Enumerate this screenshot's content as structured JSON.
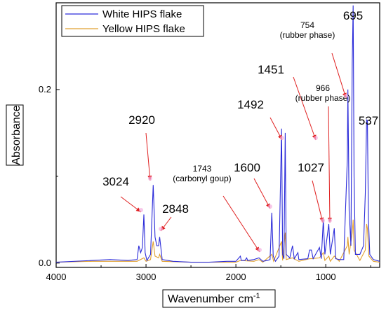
{
  "chart_data": {
    "type": "line",
    "xlabel": "Wavenumber",
    "xlabel_unit": "cm",
    "xlabel_unit_exp": "-1",
    "ylabel": "Absorbance",
    "xlim": [
      4000,
      400
    ],
    "ylim": [
      -0.005,
      0.3
    ],
    "x_ticks": [
      "4000",
      "3000",
      "2000",
      "1000"
    ],
    "x_tick_values": [
      4000,
      3000,
      2000,
      1000
    ],
    "y_ticks": [
      "0.0",
      "0.2"
    ],
    "y_tick_values": [
      0.0,
      0.2
    ],
    "grid": false,
    "legend_position": "top-left",
    "series": [
      {
        "name": "White HIPS flake",
        "color": "#2b2bd9",
        "points": [
          [
            4000,
            0.001
          ],
          [
            3600,
            0.003
          ],
          [
            3400,
            0.004
          ],
          [
            3200,
            0.003
          ],
          [
            3100,
            0.004
          ],
          [
            3080,
            0.02
          ],
          [
            3060,
            0.012
          ],
          [
            3040,
            0.018
          ],
          [
            3024,
            0.056
          ],
          [
            3010,
            0.012
          ],
          [
            2990,
            0.003
          ],
          [
            2950,
            0.01
          ],
          [
            2920,
            0.09
          ],
          [
            2900,
            0.03
          ],
          [
            2880,
            0.02
          ],
          [
            2860,
            0.02
          ],
          [
            2848,
            0.03
          ],
          [
            2820,
            0.004
          ],
          [
            2700,
            0.002
          ],
          [
            2500,
            0.001
          ],
          [
            2300,
            0.001
          ],
          [
            2100,
            0.002
          ],
          [
            2000,
            0.002
          ],
          [
            1950,
            0.008
          ],
          [
            1940,
            0.003
          ],
          [
            1900,
            0.003
          ],
          [
            1880,
            0.006
          ],
          [
            1870,
            0.003
          ],
          [
            1800,
            0.004
          ],
          [
            1743,
            0.006
          ],
          [
            1700,
            0.002
          ],
          [
            1650,
            0.003
          ],
          [
            1620,
            0.004
          ],
          [
            1600,
            0.058
          ],
          [
            1585,
            0.008
          ],
          [
            1560,
            0.002
          ],
          [
            1520,
            0.008
          ],
          [
            1492,
            0.155
          ],
          [
            1480,
            0.01
          ],
          [
            1465,
            0.005
          ],
          [
            1451,
            0.15
          ],
          [
            1440,
            0.01
          ],
          [
            1400,
            0.006
          ],
          [
            1370,
            0.02
          ],
          [
            1350,
            0.005
          ],
          [
            1310,
            0.012
          ],
          [
            1300,
            0.004
          ],
          [
            1200,
            0.005
          ],
          [
            1180,
            0.015
          ],
          [
            1160,
            0.015
          ],
          [
            1140,
            0.005
          ],
          [
            1070,
            0.018
          ],
          [
            1050,
            0.005
          ],
          [
            1027,
            0.05
          ],
          [
            1010,
            0.01
          ],
          [
            985,
            0.03
          ],
          [
            966,
            0.045
          ],
          [
            950,
            0.01
          ],
          [
            905,
            0.04
          ],
          [
            890,
            0.005
          ],
          [
            850,
            0.004
          ],
          [
            800,
            0.004
          ],
          [
            760,
            0.12
          ],
          [
            754,
            0.2
          ],
          [
            740,
            0.06
          ],
          [
            720,
            0.02
          ],
          [
            705,
            0.23
          ],
          [
            695,
            0.297
          ],
          [
            685,
            0.1
          ],
          [
            670,
            0.01
          ],
          [
            620,
            0.01
          ],
          [
            580,
            0.02
          ],
          [
            560,
            0.08
          ],
          [
            545,
            0.165
          ],
          [
            537,
            0.164
          ],
          [
            525,
            0.05
          ],
          [
            510,
            0.01
          ],
          [
            470,
            0.004
          ],
          [
            400,
            0.002
          ]
        ]
      },
      {
        "name": "Yellow HIPS flake",
        "color": "#e0a030",
        "points": [
          [
            4000,
            0.001
          ],
          [
            3600,
            0.002
          ],
          [
            3400,
            0.002
          ],
          [
            3200,
            0.002
          ],
          [
            3100,
            0.002
          ],
          [
            3024,
            0.006
          ],
          [
            3000,
            0.002
          ],
          [
            2950,
            0.004
          ],
          [
            2920,
            0.025
          ],
          [
            2900,
            0.008
          ],
          [
            2860,
            0.006
          ],
          [
            2848,
            0.01
          ],
          [
            2820,
            0.002
          ],
          [
            2500,
            0.001
          ],
          [
            2000,
            0.001
          ],
          [
            1950,
            0.003
          ],
          [
            1800,
            0.002
          ],
          [
            1743,
            0.004
          ],
          [
            1700,
            0.001
          ],
          [
            1600,
            0.01
          ],
          [
            1580,
            0.002
          ],
          [
            1492,
            0.025
          ],
          [
            1480,
            0.003
          ],
          [
            1451,
            0.035
          ],
          [
            1440,
            0.004
          ],
          [
            1370,
            0.006
          ],
          [
            1300,
            0.002
          ],
          [
            1180,
            0.005
          ],
          [
            1160,
            0.005
          ],
          [
            1070,
            0.006
          ],
          [
            1027,
            0.012
          ],
          [
            1010,
            0.003
          ],
          [
            966,
            0.008
          ],
          [
            950,
            0.002
          ],
          [
            905,
            0.008
          ],
          [
            850,
            0.002
          ],
          [
            760,
            0.02
          ],
          [
            754,
            0.03
          ],
          [
            740,
            0.01
          ],
          [
            705,
            0.035
          ],
          [
            695,
            0.05
          ],
          [
            685,
            0.015
          ],
          [
            620,
            0.003
          ],
          [
            560,
            0.015
          ],
          [
            545,
            0.045
          ],
          [
            537,
            0.04
          ],
          [
            520,
            0.008
          ],
          [
            470,
            0.002
          ],
          [
            400,
            0.001
          ]
        ]
      }
    ],
    "annotations": [
      {
        "lines": [
          "3024"
        ],
        "size": "big",
        "x": 3024,
        "y": 0.056
      },
      {
        "lines": [
          "2920"
        ],
        "size": "big",
        "x": 2920,
        "y": 0.09
      },
      {
        "lines": [
          "2848"
        ],
        "size": "big",
        "x": 2848,
        "y": 0.03
      },
      {
        "lines": [
          "1743",
          "(carbonyl goup)"
        ],
        "size": "small",
        "x": 1743,
        "y": 0.006
      },
      {
        "lines": [
          "1600"
        ],
        "size": "big",
        "x": 1600,
        "y": 0.058
      },
      {
        "lines": [
          "1492"
        ],
        "size": "big",
        "x": 1492,
        "y": 0.155
      },
      {
        "lines": [
          "1451"
        ],
        "size": "big",
        "x": 1451,
        "y": 0.15
      },
      {
        "lines": [
          "966",
          "(rubber phase)"
        ],
        "size": "small",
        "x": 966,
        "y": 0.045
      },
      {
        "lines": [
          "1027"
        ],
        "size": "big",
        "x": 1027,
        "y": 0.05
      },
      {
        "lines": [
          "754",
          "(rubber phase)"
        ],
        "size": "small",
        "x": 754,
        "y": 0.2
      },
      {
        "lines": [
          "695"
        ],
        "size": "big",
        "x": 695,
        "y": 0.297
      },
      {
        "lines": [
          "537"
        ],
        "size": "big",
        "x": 537,
        "y": 0.164
      }
    ]
  }
}
